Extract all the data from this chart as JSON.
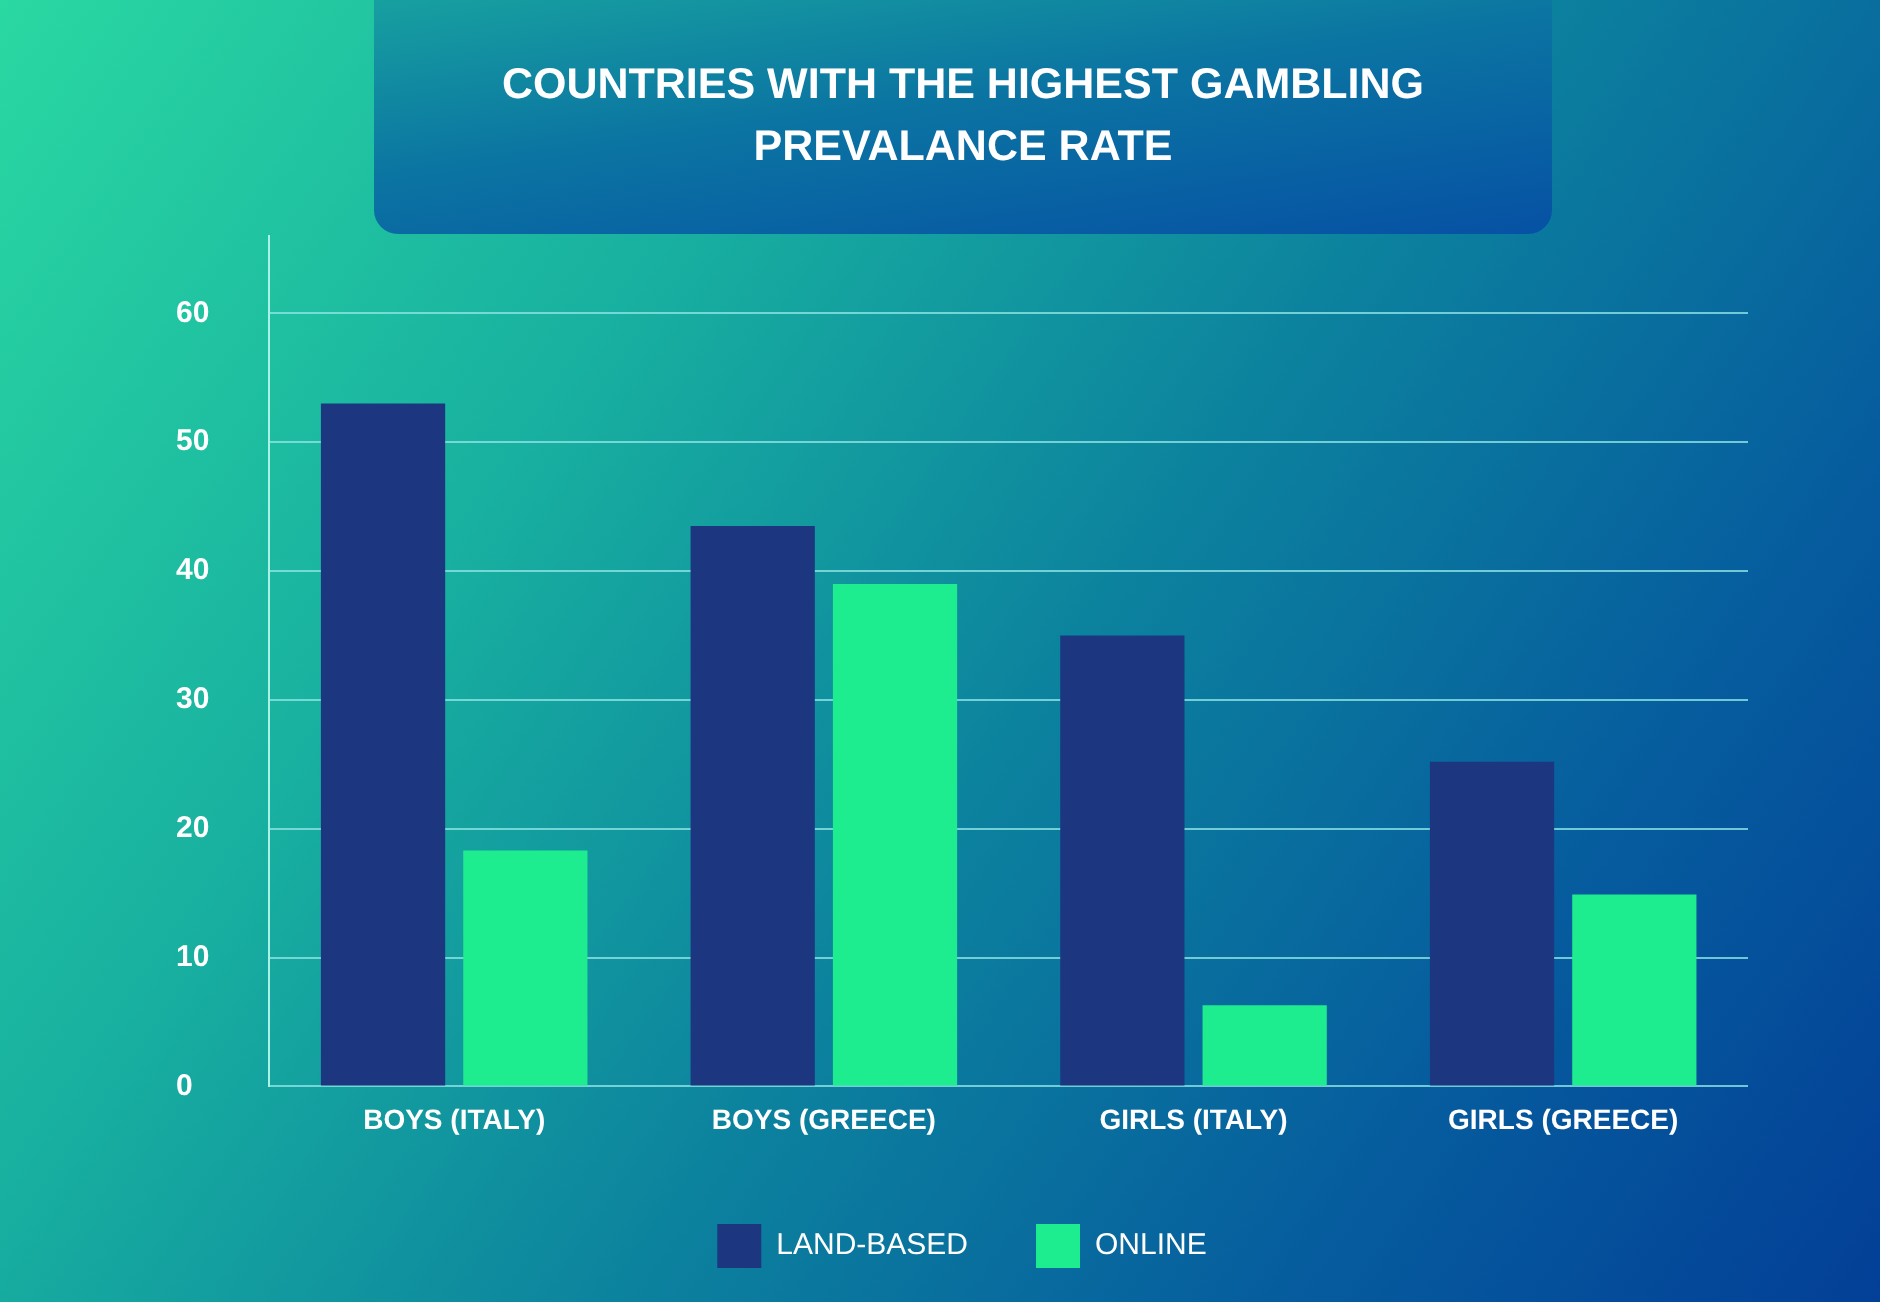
{
  "chart_data": {
    "type": "bar",
    "title": "COUNTRIES WITH THE HIGHEST GAMBLING PREVALANCE RATE",
    "categories": [
      "BOYS (ITALY)",
      "BOYS (GREECE)",
      "GIRLS (ITALY)",
      "GIRLS (GREECE)"
    ],
    "series": [
      {
        "name": "LAND-BASED",
        "color": "#1c3680",
        "values": [
          53,
          43.5,
          35,
          25.2
        ]
      },
      {
        "name": "ONLINE",
        "color": "#1ded8e",
        "values": [
          18.3,
          39,
          6.3,
          14.9
        ]
      }
    ],
    "ylim": [
      0,
      66
    ],
    "yticks": [
      0,
      10,
      20,
      30,
      40,
      50,
      60
    ],
    "grid": "y",
    "legend": "bottom"
  }
}
